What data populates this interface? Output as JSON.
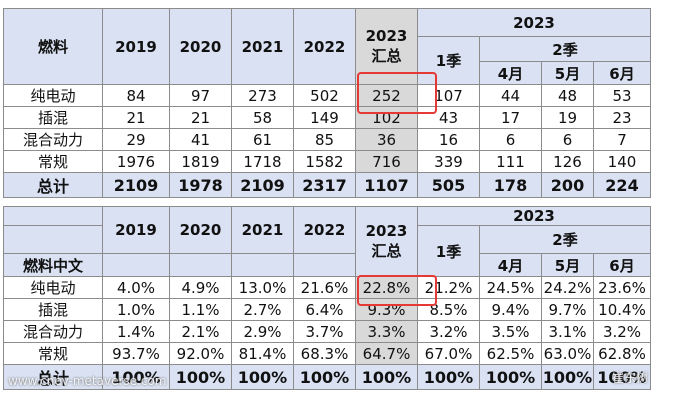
{
  "top_table": {
    "corner_label": "燃料",
    "years": [
      "2019",
      "2020",
      "2021",
      "2022"
    ],
    "summary_year": "2023",
    "summary_label": "汇总",
    "group_year": "2023",
    "q1_label": "1季",
    "q2_label": "2季",
    "months": [
      "4月",
      "5月",
      "6月"
    ],
    "rows": [
      {
        "label": "纯电动",
        "values": [
          "84",
          "97",
          "273",
          "502",
          "252",
          "107",
          "44",
          "48",
          "53"
        ]
      },
      {
        "label": "插混",
        "values": [
          "21",
          "21",
          "58",
          "149",
          "102",
          "43",
          "17",
          "19",
          "23"
        ]
      },
      {
        "label": "混合动力",
        "values": [
          "29",
          "41",
          "61",
          "85",
          "36",
          "16",
          "6",
          "6",
          "7"
        ]
      },
      {
        "label": "常规",
        "values": [
          "1976",
          "1819",
          "1718",
          "1582",
          "716",
          "339",
          "111",
          "126",
          "140"
        ]
      }
    ],
    "total": {
      "label": "总计",
      "values": [
        "2109",
        "1978",
        "2109",
        "2317",
        "1107",
        "505",
        "178",
        "200",
        "224"
      ]
    }
  },
  "bottom_table": {
    "corner_label": "燃料中文",
    "years": [
      "2019",
      "2020",
      "2021",
      "2022"
    ],
    "summary_year": "2023",
    "summary_label": "汇总",
    "group_year": "2023",
    "q1_label": "1季",
    "q2_label": "2季",
    "months": [
      "4月",
      "5月",
      "6月"
    ],
    "rows": [
      {
        "label": "纯电动",
        "values": [
          "4.0%",
          "4.9%",
          "13.0%",
          "21.6%",
          "22.8%",
          "21.2%",
          "24.5%",
          "24.2%",
          "23.6%"
        ]
      },
      {
        "label": "插混",
        "values": [
          "1.0%",
          "1.1%",
          "2.7%",
          "6.4%",
          "9.3%",
          "8.5%",
          "9.4%",
          "9.7%",
          "10.4%"
        ]
      },
      {
        "label": "混合动力",
        "values": [
          "1.4%",
          "2.1%",
          "2.9%",
          "3.7%",
          "3.3%",
          "3.2%",
          "3.5%",
          "3.1%",
          "3.2%"
        ]
      },
      {
        "label": "常规",
        "values": [
          "93.7%",
          "92.0%",
          "81.4%",
          "68.3%",
          "64.7%",
          "67.0%",
          "62.5%",
          "63.0%",
          "62.8%"
        ]
      }
    ],
    "total": {
      "label": "总计",
      "values": [
        "100%",
        "100%",
        "100%",
        "100%",
        "100%",
        "100%",
        "100%",
        "100%",
        "100%"
      ]
    }
  },
  "watermarks": {
    "left": "www.cnev-metaverse.com",
    "right": "崔东树"
  },
  "colors": {
    "header_bg": "#d9e1f2",
    "highlight_col": "#d9d9d9",
    "annotation_box": "#e53935",
    "grid": "#8c8c8c"
  }
}
